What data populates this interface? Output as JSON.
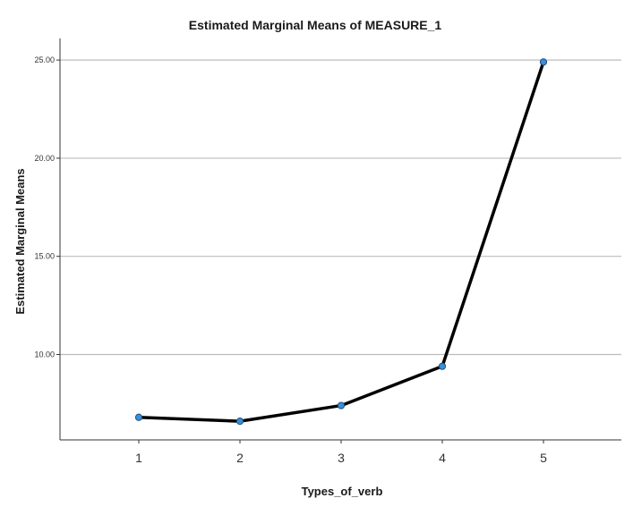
{
  "chart_data": {
    "type": "line",
    "title": "Estimated Marginal Means of MEASURE_1",
    "xlabel": "Types_of_verb",
    "ylabel": "Estimated Marginal Means",
    "categories": [
      "1",
      "2",
      "3",
      "4",
      "5"
    ],
    "series": [
      {
        "values": [
          6.8,
          6.6,
          7.4,
          9.4,
          24.9
        ]
      }
    ],
    "y_ticks": [
      {
        "value": 10,
        "label": "10.00"
      },
      {
        "value": 15,
        "label": "15.00"
      },
      {
        "value": 20,
        "label": "20.00"
      },
      {
        "value": 25,
        "label": "25.00"
      }
    ],
    "ylim": [
      5.65,
      26.1
    ],
    "grid": true,
    "legend": "none",
    "colors": {
      "line": "#000000",
      "marker_fill": "#3a8fd6",
      "marker_stroke": "#1a4e7e",
      "grid": "#bdbdbd",
      "axis": "#333333"
    }
  }
}
